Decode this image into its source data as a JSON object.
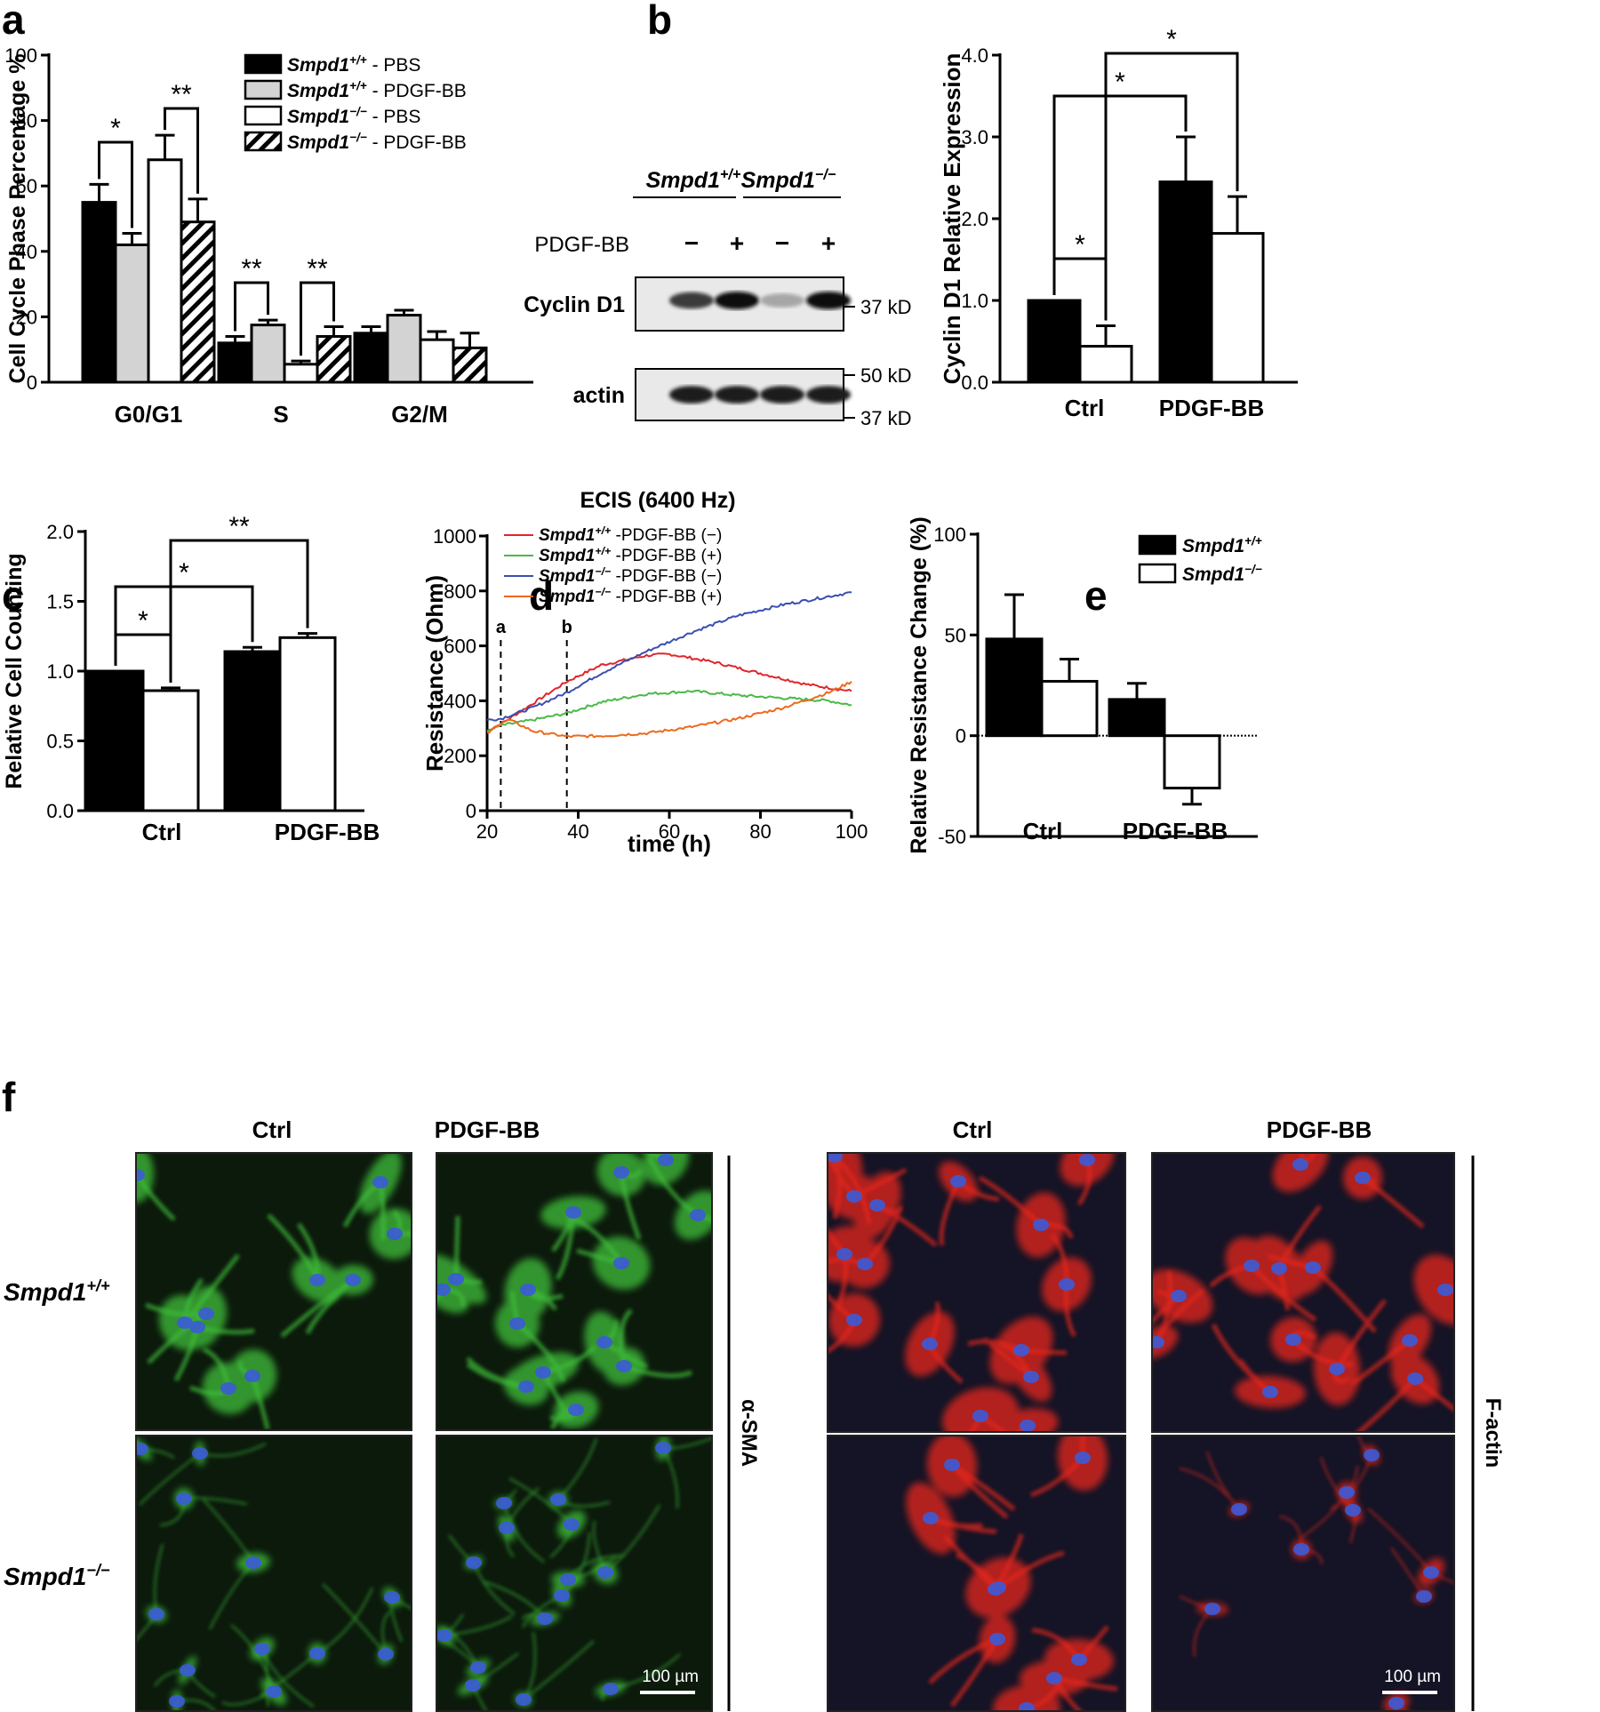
{
  "panels": {
    "a": {
      "letter": "a"
    },
    "b": {
      "letter": "b"
    },
    "c": {
      "letter": "c"
    },
    "d": {
      "letter": "d"
    },
    "e": {
      "letter": "e"
    },
    "f": {
      "letter": "f"
    }
  },
  "legend_a": [
    {
      "name": "Smpd1",
      "sup": "+/+",
      "suffix": " - PBS",
      "fill": "#000000",
      "pattern": "solid"
    },
    {
      "name": "Smpd1",
      "sup": "+/+",
      "suffix": " - PDGF-BB",
      "fill": "#d3d3d3",
      "pattern": "solid"
    },
    {
      "name": "Smpd1",
      "sup": "−/−",
      "suffix": " - PBS",
      "fill": "#ffffff",
      "pattern": "solid"
    },
    {
      "name": "Smpd1",
      "sup": "−/−",
      "suffix": " - PDGF-BB",
      "fill": "#ffffff",
      "pattern": "hatch"
    }
  ],
  "legend_e": [
    {
      "name": "Smpd1",
      "sup": "+/+",
      "fill": "#000000"
    },
    {
      "name": "Smpd1",
      "sup": "−/−",
      "fill": "#ffffff"
    }
  ],
  "legend_d": [
    {
      "name": "Smpd1",
      "sup": "+/+",
      "suffix": " -PDGF-BB (−)",
      "color": "#e0262b"
    },
    {
      "name": "Smpd1",
      "sup": "+/+",
      "suffix": " -PDGF-BB (+)",
      "color": "#4cb848"
    },
    {
      "name": "Smpd1",
      "sup": "−/−",
      "suffix": " -PDGF-BB (−)",
      "color": "#3a4fb0"
    },
    {
      "name": "Smpd1",
      "sup": "−/−",
      "suffix": " -PDGF-BB (+)",
      "color": "#ec6a1f"
    }
  ],
  "western_blot": {
    "genotypes": [
      {
        "name": "Smpd1",
        "sup": "+/+"
      },
      {
        "name": "Smpd1",
        "sup": "−/−"
      }
    ],
    "treatment_label": "PDGF-BB",
    "treatment_signs": [
      "−",
      "+",
      "−",
      "+"
    ],
    "rows": [
      {
        "label": "Cyclin D1",
        "intensity": [
          0.8,
          1.0,
          0.3,
          1.0
        ],
        "markers": [
          "37 kD"
        ]
      },
      {
        "label": "actin",
        "intensity": [
          0.95,
          0.95,
          0.95,
          0.95
        ],
        "markers": [
          "50 kD",
          "37 kD"
        ]
      }
    ]
  },
  "micrographs": {
    "col_labels": [
      "Ctrl",
      "PDGF-BB",
      "Ctrl",
      "PDGF-BB"
    ],
    "row_labels": [
      {
        "name": "Smpd1",
        "sup": "+/+"
      },
      {
        "name": "Smpd1",
        "sup": "−/−"
      }
    ],
    "stain_labels": [
      "α-SMA",
      "F-actin"
    ],
    "scale_bar": "100 µm",
    "colors": {
      "alpha_sma": "#3fbf3a",
      "f_actin": "#e8281e",
      "nuclei": "#3b5bd8"
    }
  },
  "chart_data": [
    {
      "panel": "a",
      "type": "bar",
      "ylabel": "Cell Cycle Phase Percentage %",
      "ylim": [
        0,
        100
      ],
      "yticks": [
        0,
        20,
        40,
        60,
        80,
        100
      ],
      "categories": [
        "G0/G1",
        "S",
        "G2/M"
      ],
      "series": [
        {
          "name": "Smpd1+/+ - PBS",
          "values": [
            55,
            12,
            15
          ],
          "errors": [
            5.5,
            2,
            2
          ]
        },
        {
          "name": "Smpd1+/+ - PDGF-BB",
          "values": [
            42,
            17.5,
            20.5
          ],
          "errors": [
            3.5,
            1.5,
            1.5
          ]
        },
        {
          "name": "Smpd1−/− - PBS",
          "values": [
            68,
            5.5,
            13
          ],
          "errors": [
            7.5,
            1,
            2.5
          ]
        },
        {
          "name": "Smpd1−/− - PDGF-BB",
          "values": [
            49,
            14,
            10.5
          ],
          "errors": [
            7,
            3,
            4.5
          ]
        }
      ],
      "significance": [
        {
          "from": [
            0,
            0
          ],
          "to": [
            0,
            1
          ],
          "label": "*"
        },
        {
          "from": [
            0,
            2
          ],
          "to": [
            0,
            3
          ],
          "label": "**"
        },
        {
          "from": [
            1,
            0
          ],
          "to": [
            1,
            1
          ],
          "label": "**"
        },
        {
          "from": [
            1,
            2
          ],
          "to": [
            1,
            3
          ],
          "label": "**"
        }
      ]
    },
    {
      "panel": "b",
      "type": "bar",
      "ylabel": "Cyclin D1 Relative Expression",
      "ylim": [
        0,
        4
      ],
      "yticks": [
        "0.0",
        "1.0",
        "2.0",
        "3.0",
        "4.0"
      ],
      "categories": [
        "Ctrl",
        "PDGF-BB"
      ],
      "series": [
        {
          "name": "Smpd1+/+",
          "values": [
            1.0,
            2.45
          ],
          "errors": [
            0,
            0.55
          ]
        },
        {
          "name": "Smpd1−/−",
          "values": [
            0.44,
            1.82
          ],
          "errors": [
            0.25,
            0.45
          ]
        }
      ],
      "significance": [
        {
          "from": [
            0,
            0
          ],
          "to": [
            0,
            1
          ],
          "label": "*"
        },
        {
          "from": [
            0,
            0
          ],
          "to": [
            1,
            0
          ],
          "label": "*"
        },
        {
          "from": [
            0,
            1
          ],
          "to": [
            1,
            1
          ],
          "label": "*"
        }
      ]
    },
    {
      "panel": "c",
      "type": "bar",
      "ylabel": "Relative Cell Counting",
      "ylim": [
        0,
        2
      ],
      "yticks": [
        "0.0",
        "0.5",
        "1.0",
        "1.5",
        "2.0"
      ],
      "categories": [
        "Ctrl",
        "PDGF-BB"
      ],
      "series": [
        {
          "name": "Smpd1+/+",
          "values": [
            1.0,
            1.14
          ],
          "errors": [
            0,
            0.03
          ]
        },
        {
          "name": "Smpd1−/−",
          "values": [
            0.86,
            1.24
          ],
          "errors": [
            0.02,
            0.03
          ]
        }
      ],
      "significance": [
        {
          "from": [
            0,
            0
          ],
          "to": [
            0,
            1
          ],
          "label": "*"
        },
        {
          "from": [
            0,
            0
          ],
          "to": [
            1,
            0
          ],
          "label": "*"
        },
        {
          "from": [
            0,
            1
          ],
          "to": [
            1,
            1
          ],
          "label": "**"
        }
      ]
    },
    {
      "panel": "d",
      "type": "line",
      "title": "ECIS (6400 Hz)",
      "xlabel": "time (h)",
      "ylabel": "Resistance (Ohm)",
      "xlim": [
        20,
        100
      ],
      "ylim": [
        0,
        1000
      ],
      "xticks": [
        20,
        40,
        60,
        80,
        100
      ],
      "yticks": [
        0,
        200,
        400,
        600,
        800,
        1000
      ],
      "markers": [
        {
          "label": "a",
          "x": 23
        },
        {
          "label": "b",
          "x": 37.5
        }
      ],
      "series": [
        {
          "name": "Smpd1+/+ -PDGF-BB (−)",
          "x": [
            20,
            23,
            30,
            37.5,
            45,
            55,
            60,
            70,
            80,
            90,
            100
          ],
          "y": [
            290,
            315,
            390,
            470,
            530,
            565,
            570,
            540,
            500,
            460,
            435
          ]
        },
        {
          "name": "Smpd1+/+ -PDGF-BB (+)",
          "x": [
            20,
            23,
            30,
            37.5,
            45,
            55,
            65,
            75,
            85,
            95,
            100
          ],
          "y": [
            290,
            310,
            330,
            355,
            395,
            425,
            435,
            420,
            410,
            400,
            385
          ]
        },
        {
          "name": "Smpd1−/− -PDGF-BB (−)",
          "x": [
            20,
            23,
            30,
            37.5,
            45,
            55,
            65,
            75,
            85,
            95,
            100
          ],
          "y": [
            330,
            335,
            375,
            430,
            500,
            580,
            650,
            710,
            750,
            780,
            795
          ]
        },
        {
          "name": "Smpd1−/− -PDGF-BB (+)",
          "x": [
            20,
            23,
            25,
            30,
            37.5,
            45,
            55,
            65,
            75,
            85,
            95,
            100
          ],
          "y": [
            280,
            320,
            330,
            290,
            270,
            272,
            282,
            305,
            335,
            375,
            430,
            470
          ]
        }
      ]
    },
    {
      "panel": "e",
      "type": "bar",
      "ylabel": "Relative Resistance Change (%)",
      "ylim": [
        -50,
        100
      ],
      "yticks": [
        -50,
        0,
        50,
        100
      ],
      "categories": [
        "Ctrl",
        "PDGF-BB"
      ],
      "series": [
        {
          "name": "Smpd1+/+",
          "values": [
            48,
            18
          ],
          "errors": [
            22,
            8
          ]
        },
        {
          "name": "Smpd1−/−",
          "values": [
            27,
            -26
          ],
          "errors": [
            11,
            8
          ]
        }
      ]
    }
  ]
}
